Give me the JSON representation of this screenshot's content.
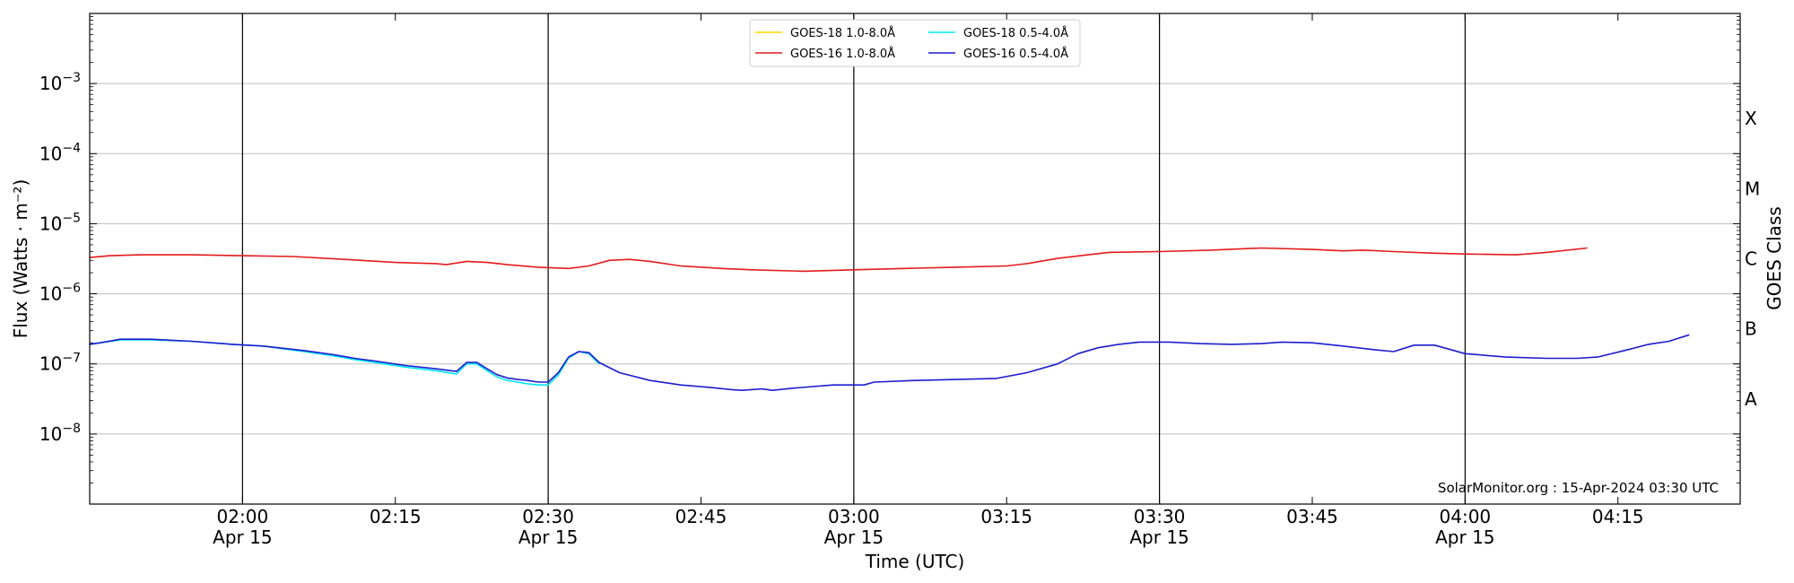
{
  "chart_data": {
    "type": "line",
    "xlabel": "Time (UTC)",
    "ylabel": "Flux (Watts · m⁻²)",
    "right_axis_label": "GOES Class",
    "y_scale": "log",
    "ylim": [
      1e-09,
      0.01
    ],
    "y_tick_labels": [
      {
        "value": 1e-08,
        "base": "10",
        "exp": "−8"
      },
      {
        "value": 1e-07,
        "base": "10",
        "exp": "−7"
      },
      {
        "value": 1e-06,
        "base": "10",
        "exp": "−6"
      },
      {
        "value": 1e-05,
        "base": "10",
        "exp": "−5"
      },
      {
        "value": 0.0001,
        "base": "10",
        "exp": "−4"
      },
      {
        "value": 0.001,
        "base": "10",
        "exp": "−3"
      }
    ],
    "xlim": [
      "2024-04-15T01:45",
      "2024-04-15T04:27"
    ],
    "x_ticks": [
      {
        "time": "2024-04-15T02:00",
        "label": "02:00",
        "date": "Apr 15"
      },
      {
        "time": "2024-04-15T02:15",
        "label": "02:15",
        "date": ""
      },
      {
        "time": "2024-04-15T02:30",
        "label": "02:30",
        "date": "Apr 15"
      },
      {
        "time": "2024-04-15T02:45",
        "label": "02:45",
        "date": ""
      },
      {
        "time": "2024-04-15T03:00",
        "label": "03:00",
        "date": "Apr 15"
      },
      {
        "time": "2024-04-15T03:15",
        "label": "03:15",
        "date": ""
      },
      {
        "time": "2024-04-15T03:30",
        "label": "03:30",
        "date": "Apr 15"
      },
      {
        "time": "2024-04-15T03:45",
        "label": "03:45",
        "date": ""
      },
      {
        "time": "2024-04-15T04:00",
        "label": "04:00",
        "date": "Apr 15"
      },
      {
        "time": "2024-04-15T04:15",
        "label": "04:15",
        "date": ""
      }
    ],
    "vertical_lines": [
      "2024-04-15T02:00",
      "2024-04-15T02:30",
      "2024-04-15T03:00",
      "2024-04-15T03:30",
      "2024-04-15T04:00"
    ],
    "goes_classes": [
      {
        "label": "A",
        "value": 3.16e-08
      },
      {
        "label": "B",
        "value": 3.16e-07
      },
      {
        "label": "C",
        "value": 3.16e-06
      },
      {
        "label": "M",
        "value": 3.16e-05
      },
      {
        "label": "X",
        "value": 0.000316
      }
    ],
    "grid": "horizontal at decades",
    "legend_position": "top-center",
    "credit": "SolarMonitor.org : 15-Apr-2024 03:30 UTC",
    "series": [
      {
        "name": "GOES-18 1.0-8.0Å",
        "color": "#ffd700",
        "points": []
      },
      {
        "name": "GOES-18 0.5-4.0Å",
        "color": "#00e5ee",
        "points": [
          [
            "2024-04-15T01:45",
            1.9e-07
          ],
          [
            "2024-04-15T01:48",
            2.2e-07
          ],
          [
            "2024-04-15T01:51",
            2.2e-07
          ],
          [
            "2024-04-15T01:55",
            2.1e-07
          ],
          [
            "2024-04-15T01:59",
            1.9e-07
          ],
          [
            "2024-04-15T02:02",
            1.8e-07
          ],
          [
            "2024-04-15T02:06",
            1.5e-07
          ],
          [
            "2024-04-15T02:09",
            1.3e-07
          ],
          [
            "2024-04-15T02:11",
            1.15e-07
          ],
          [
            "2024-04-15T02:13",
            1.05e-07
          ],
          [
            "2024-04-15T02:16",
            9e-08
          ],
          [
            "2024-04-15T02:19",
            8e-08
          ],
          [
            "2024-04-15T02:21",
            7.2e-08
          ],
          [
            "2024-04-15T02:22",
            1e-07
          ],
          [
            "2024-04-15T02:23",
            1e-07
          ],
          [
            "2024-04-15T02:24",
            8e-08
          ],
          [
            "2024-04-15T02:25",
            6.5e-08
          ],
          [
            "2024-04-15T02:26",
            5.8e-08
          ],
          [
            "2024-04-15T02:27",
            5.5e-08
          ],
          [
            "2024-04-15T02:28",
            5.2e-08
          ],
          [
            "2024-04-15T02:29",
            5e-08
          ],
          [
            "2024-04-15T02:30",
            5e-08
          ],
          [
            "2024-04-15T02:31",
            7e-08
          ],
          [
            "2024-04-15T02:32",
            1.2e-07
          ],
          [
            "2024-04-15T02:33",
            1.5e-07
          ],
          [
            "2024-04-15T02:34",
            1.4e-07
          ],
          [
            "2024-04-15T02:35",
            1e-07
          ]
        ]
      },
      {
        "name": "GOES-16 1.0-8.0Å",
        "color": "#e31a1c",
        "points": [
          [
            "2024-04-15T01:45",
            3.3e-06
          ],
          [
            "2024-04-15T01:47",
            3.5e-06
          ],
          [
            "2024-04-15T01:50",
            3.6e-06
          ],
          [
            "2024-04-15T01:55",
            3.6e-06
          ],
          [
            "2024-04-15T02:00",
            3.5e-06
          ],
          [
            "2024-04-15T02:05",
            3.4e-06
          ],
          [
            "2024-04-15T02:10",
            3.1e-06
          ],
          [
            "2024-04-15T02:15",
            2.8e-06
          ],
          [
            "2024-04-15T02:19",
            2.7e-06
          ],
          [
            "2024-04-15T02:20",
            2.6e-06
          ],
          [
            "2024-04-15T02:22",
            2.9e-06
          ],
          [
            "2024-04-15T02:24",
            2.8e-06
          ],
          [
            "2024-04-15T02:26",
            2.6e-06
          ],
          [
            "2024-04-15T02:29",
            2.4e-06
          ],
          [
            "2024-04-15T02:32",
            2.3e-06
          ],
          [
            "2024-04-15T02:34",
            2.5e-06
          ],
          [
            "2024-04-15T02:36",
            3e-06
          ],
          [
            "2024-04-15T02:38",
            3.1e-06
          ],
          [
            "2024-04-15T02:40",
            2.9e-06
          ],
          [
            "2024-04-15T02:43",
            2.5e-06
          ],
          [
            "2024-04-15T02:47",
            2.3e-06
          ],
          [
            "2024-04-15T02:50",
            2.2e-06
          ],
          [
            "2024-04-15T02:55",
            2.1e-06
          ],
          [
            "2024-04-15T03:00",
            2.2e-06
          ],
          [
            "2024-04-15T03:05",
            2.3e-06
          ],
          [
            "2024-04-15T03:10",
            2.4e-06
          ],
          [
            "2024-04-15T03:15",
            2.5e-06
          ],
          [
            "2024-04-15T03:17",
            2.7e-06
          ],
          [
            "2024-04-15T03:20",
            3.2e-06
          ],
          [
            "2024-04-15T03:23",
            3.6e-06
          ],
          [
            "2024-04-15T03:25",
            3.9e-06
          ],
          [
            "2024-04-15T03:30",
            4e-06
          ],
          [
            "2024-04-15T03:35",
            4.2e-06
          ],
          [
            "2024-04-15T03:40",
            4.5e-06
          ],
          [
            "2024-04-15T03:45",
            4.3e-06
          ],
          [
            "2024-04-15T03:48",
            4.1e-06
          ],
          [
            "2024-04-15T03:50",
            4.2e-06
          ],
          [
            "2024-04-15T03:53",
            4e-06
          ],
          [
            "2024-04-15T03:57",
            3.8e-06
          ],
          [
            "2024-04-15T04:00",
            3.7e-06
          ],
          [
            "2024-04-15T04:05",
            3.6e-06
          ],
          [
            "2024-04-15T04:08",
            3.9e-06
          ],
          [
            "2024-04-15T04:12",
            4.5e-06
          ]
        ]
      },
      {
        "name": "GOES-16 0.5-4.0Å",
        "color": "#1c1ccf",
        "points": [
          [
            "2024-04-15T01:45",
            1.9e-07
          ],
          [
            "2024-04-15T01:46",
            2e-07
          ],
          [
            "2024-04-15T01:48",
            2.25e-07
          ],
          [
            "2024-04-15T01:51",
            2.25e-07
          ],
          [
            "2024-04-15T01:55",
            2.1e-07
          ],
          [
            "2024-04-15T01:59",
            1.9e-07
          ],
          [
            "2024-04-15T02:02",
            1.8e-07
          ],
          [
            "2024-04-15T02:06",
            1.55e-07
          ],
          [
            "2024-04-15T02:09",
            1.35e-07
          ],
          [
            "2024-04-15T02:11",
            1.2e-07
          ],
          [
            "2024-04-15T02:13",
            1.1e-07
          ],
          [
            "2024-04-15T02:16",
            9.5e-08
          ],
          [
            "2024-04-15T02:19",
            8.5e-08
          ],
          [
            "2024-04-15T02:21",
            7.8e-08
          ],
          [
            "2024-04-15T02:22",
            1.05e-07
          ],
          [
            "2024-04-15T02:23",
            1.05e-07
          ],
          [
            "2024-04-15T02:24",
            8.5e-08
          ],
          [
            "2024-04-15T02:25",
            7e-08
          ],
          [
            "2024-04-15T02:26",
            6.3e-08
          ],
          [
            "2024-04-15T02:27",
            6e-08
          ],
          [
            "2024-04-15T02:28",
            5.8e-08
          ],
          [
            "2024-04-15T02:29",
            5.5e-08
          ],
          [
            "2024-04-15T02:30",
            5.5e-08
          ],
          [
            "2024-04-15T02:31",
            7.5e-08
          ],
          [
            "2024-04-15T02:32",
            1.25e-07
          ],
          [
            "2024-04-15T02:33",
            1.5e-07
          ],
          [
            "2024-04-15T02:34",
            1.45e-07
          ],
          [
            "2024-04-15T02:35",
            1.05e-07
          ],
          [
            "2024-04-15T02:37",
            7.5e-08
          ],
          [
            "2024-04-15T02:40",
            5.8e-08
          ],
          [
            "2024-04-15T02:43",
            5e-08
          ],
          [
            "2024-04-15T02:46",
            4.6e-08
          ],
          [
            "2024-04-15T02:48",
            4.3e-08
          ],
          [
            "2024-04-15T02:49",
            4.2e-08
          ],
          [
            "2024-04-15T02:51",
            4.4e-08
          ],
          [
            "2024-04-15T02:52",
            4.2e-08
          ],
          [
            "2024-04-15T02:54",
            4.5e-08
          ],
          [
            "2024-04-15T02:58",
            5e-08
          ],
          [
            "2024-04-15T03:01",
            5e-08
          ],
          [
            "2024-04-15T03:02",
            5.5e-08
          ],
          [
            "2024-04-15T03:06",
            5.8e-08
          ],
          [
            "2024-04-15T03:10",
            6e-08
          ],
          [
            "2024-04-15T03:14",
            6.2e-08
          ],
          [
            "2024-04-15T03:17",
            7.5e-08
          ],
          [
            "2024-04-15T03:20",
            1e-07
          ],
          [
            "2024-04-15T03:22",
            1.4e-07
          ],
          [
            "2024-04-15T03:24",
            1.7e-07
          ],
          [
            "2024-04-15T03:26",
            1.9e-07
          ],
          [
            "2024-04-15T03:28",
            2.05e-07
          ],
          [
            "2024-04-15T03:31",
            2.05e-07
          ],
          [
            "2024-04-15T03:34",
            1.95e-07
          ],
          [
            "2024-04-15T03:37",
            1.9e-07
          ],
          [
            "2024-04-15T03:40",
            1.95e-07
          ],
          [
            "2024-04-15T03:42",
            2.05e-07
          ],
          [
            "2024-04-15T03:45",
            2e-07
          ],
          [
            "2024-04-15T03:48",
            1.8e-07
          ],
          [
            "2024-04-15T03:51",
            1.6e-07
          ],
          [
            "2024-04-15T03:53",
            1.5e-07
          ],
          [
            "2024-04-15T03:55",
            1.85e-07
          ],
          [
            "2024-04-15T03:57",
            1.85e-07
          ],
          [
            "2024-04-15T04:00",
            1.4e-07
          ],
          [
            "2024-04-15T04:04",
            1.25e-07
          ],
          [
            "2024-04-15T04:08",
            1.2e-07
          ],
          [
            "2024-04-15T04:11",
            1.2e-07
          ],
          [
            "2024-04-15T04:13",
            1.25e-07
          ],
          [
            "2024-04-15T04:16",
            1.6e-07
          ],
          [
            "2024-04-15T04:18",
            1.9e-07
          ],
          [
            "2024-04-15T04:20",
            2.1e-07
          ],
          [
            "2024-04-15T04:22",
            2.6e-07
          ]
        ]
      }
    ]
  }
}
